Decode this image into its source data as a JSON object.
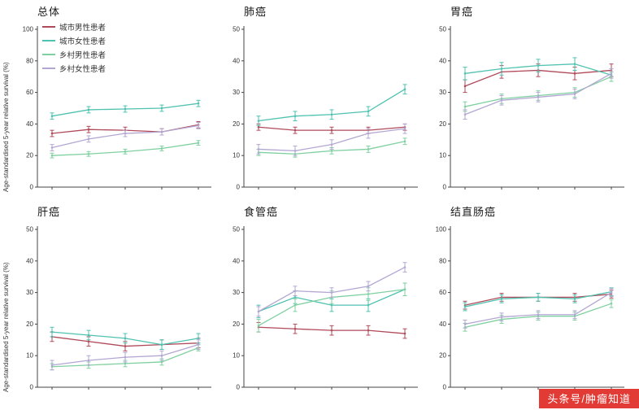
{
  "ylabel": "Age-standardised 5-year relative survival (%)",
  "watermark": {
    "text": "头条号/肿瘤知道"
  },
  "legend": {
    "items": [
      {
        "label": "城市男性患者",
        "color": "#b04a5a"
      },
      {
        "label": "城市女性患者",
        "color": "#4fc2b0"
      },
      {
        "label": "乡村男性患者",
        "color": "#7fd0a0"
      },
      {
        "label": "乡村女性患者",
        "color": "#b3a6d3"
      }
    ]
  },
  "chart_data": [
    {
      "type": "line",
      "title": "总体",
      "xlabel": "",
      "ylabel": "Age-standardised 5-year relative survival (%)",
      "ylim": [
        0,
        100
      ],
      "yticks": [
        0,
        20,
        40,
        60,
        80,
        100
      ],
      "grid": false,
      "legend_position": "upper-left",
      "series": [
        {
          "name": "城市男性患者",
          "values": [
            34,
            36.5,
            36,
            35,
            39.5
          ],
          "err": 2
        },
        {
          "name": "城市女性患者",
          "values": [
            45,
            49,
            49.5,
            50,
            53
          ],
          "err": 2
        },
        {
          "name": "乡村男性患者",
          "values": [
            20,
            21,
            22.5,
            24.5,
            28
          ],
          "err": 1.5
        },
        {
          "name": "乡村女性患者",
          "values": [
            25,
            30.5,
            34,
            35,
            39
          ],
          "err": 2
        }
      ]
    },
    {
      "type": "line",
      "title": "肺癌",
      "xlabel": "",
      "ylim": [
        0,
        50
      ],
      "yticks": [
        0,
        10,
        20,
        30,
        40,
        50
      ],
      "grid": false,
      "series": [
        {
          "name": "城市男性患者",
          "values": [
            19,
            18,
            18,
            18,
            19
          ],
          "err": 1
        },
        {
          "name": "城市女性患者",
          "values": [
            21,
            22.5,
            23,
            24,
            31
          ],
          "err": 1.5
        },
        {
          "name": "乡村男性患者",
          "values": [
            11,
            10.5,
            11.5,
            12,
            14.5
          ],
          "err": 1
        },
        {
          "name": "乡村女性患者",
          "values": [
            12,
            11.5,
            13.5,
            17,
            18.5
          ],
          "err": 1.5
        }
      ]
    },
    {
      "type": "line",
      "title": "胃癌",
      "xlabel": "",
      "ylim": [
        0,
        50
      ],
      "yticks": [
        0,
        10,
        20,
        30,
        40,
        50
      ],
      "grid": false,
      "series": [
        {
          "name": "城市男性患者",
          "values": [
            32,
            36.5,
            37,
            36,
            37
          ],
          "err": 2
        },
        {
          "name": "城市女性患者",
          "values": [
            36,
            37.5,
            38.5,
            39,
            35.5
          ],
          "err": 2
        },
        {
          "name": "乡村男性患者",
          "values": [
            25.5,
            28,
            29,
            30,
            35
          ],
          "err": 1.5
        },
        {
          "name": "乡村女性患者",
          "values": [
            23,
            27.5,
            28.5,
            29.5,
            36
          ],
          "err": 1.5
        }
      ]
    },
    {
      "type": "line",
      "title": "肝癌",
      "xlabel": "",
      "ylabel": "Age-standardised 5-year relative survival (%)",
      "ylim": [
        0,
        50
      ],
      "yticks": [
        0,
        10,
        20,
        30,
        40,
        50
      ],
      "grid": false,
      "series": [
        {
          "name": "城市男性患者",
          "values": [
            16,
            14.5,
            13,
            13.5,
            14
          ],
          "err": 1.5
        },
        {
          "name": "城市女性患者",
          "values": [
            17.5,
            16.5,
            15.5,
            13.5,
            15.5
          ],
          "err": 1.5
        },
        {
          "name": "乡村男性患者",
          "values": [
            6.5,
            7,
            7.5,
            8,
            12.5
          ],
          "err": 1
        },
        {
          "name": "乡村女性患者",
          "values": [
            7,
            8.5,
            9.5,
            10,
            13.5
          ],
          "err": 1.5
        }
      ]
    },
    {
      "type": "line",
      "title": "食管癌",
      "xlabel": "",
      "ylim": [
        0,
        50
      ],
      "yticks": [
        0,
        10,
        20,
        30,
        40,
        50
      ],
      "grid": false,
      "series": [
        {
          "name": "城市男性患者",
          "values": [
            19,
            18.5,
            18,
            18,
            17
          ],
          "err": 1.5
        },
        {
          "name": "城市女性患者",
          "values": [
            24,
            28.5,
            26,
            26,
            31
          ],
          "err": 2
        },
        {
          "name": "乡村男性患者",
          "values": [
            19.5,
            26,
            28.5,
            29.5,
            31
          ],
          "err": 2
        },
        {
          "name": "乡村女性患者",
          "values": [
            24,
            30.5,
            30,
            32,
            38
          ],
          "err": 1.5
        }
      ]
    },
    {
      "type": "line",
      "title": "结直肠癌",
      "xlabel": "",
      "ylim": [
        0,
        100
      ],
      "yticks": [
        0,
        20,
        40,
        60,
        80,
        100
      ],
      "grid": false,
      "series": [
        {
          "name": "城市男性患者",
          "values": [
            52,
            57,
            57,
            57,
            59
          ],
          "err": 2.5
        },
        {
          "name": "城市女性患者",
          "values": [
            51,
            56,
            57,
            56,
            60.5
          ],
          "err": 2.5
        },
        {
          "name": "乡村男性患者",
          "values": [
            38,
            43,
            45,
            45,
            53
          ],
          "err": 2.5
        },
        {
          "name": "乡村女性患者",
          "values": [
            40,
            44.5,
            46,
            46,
            60
          ],
          "err": 2.5
        }
      ]
    }
  ]
}
